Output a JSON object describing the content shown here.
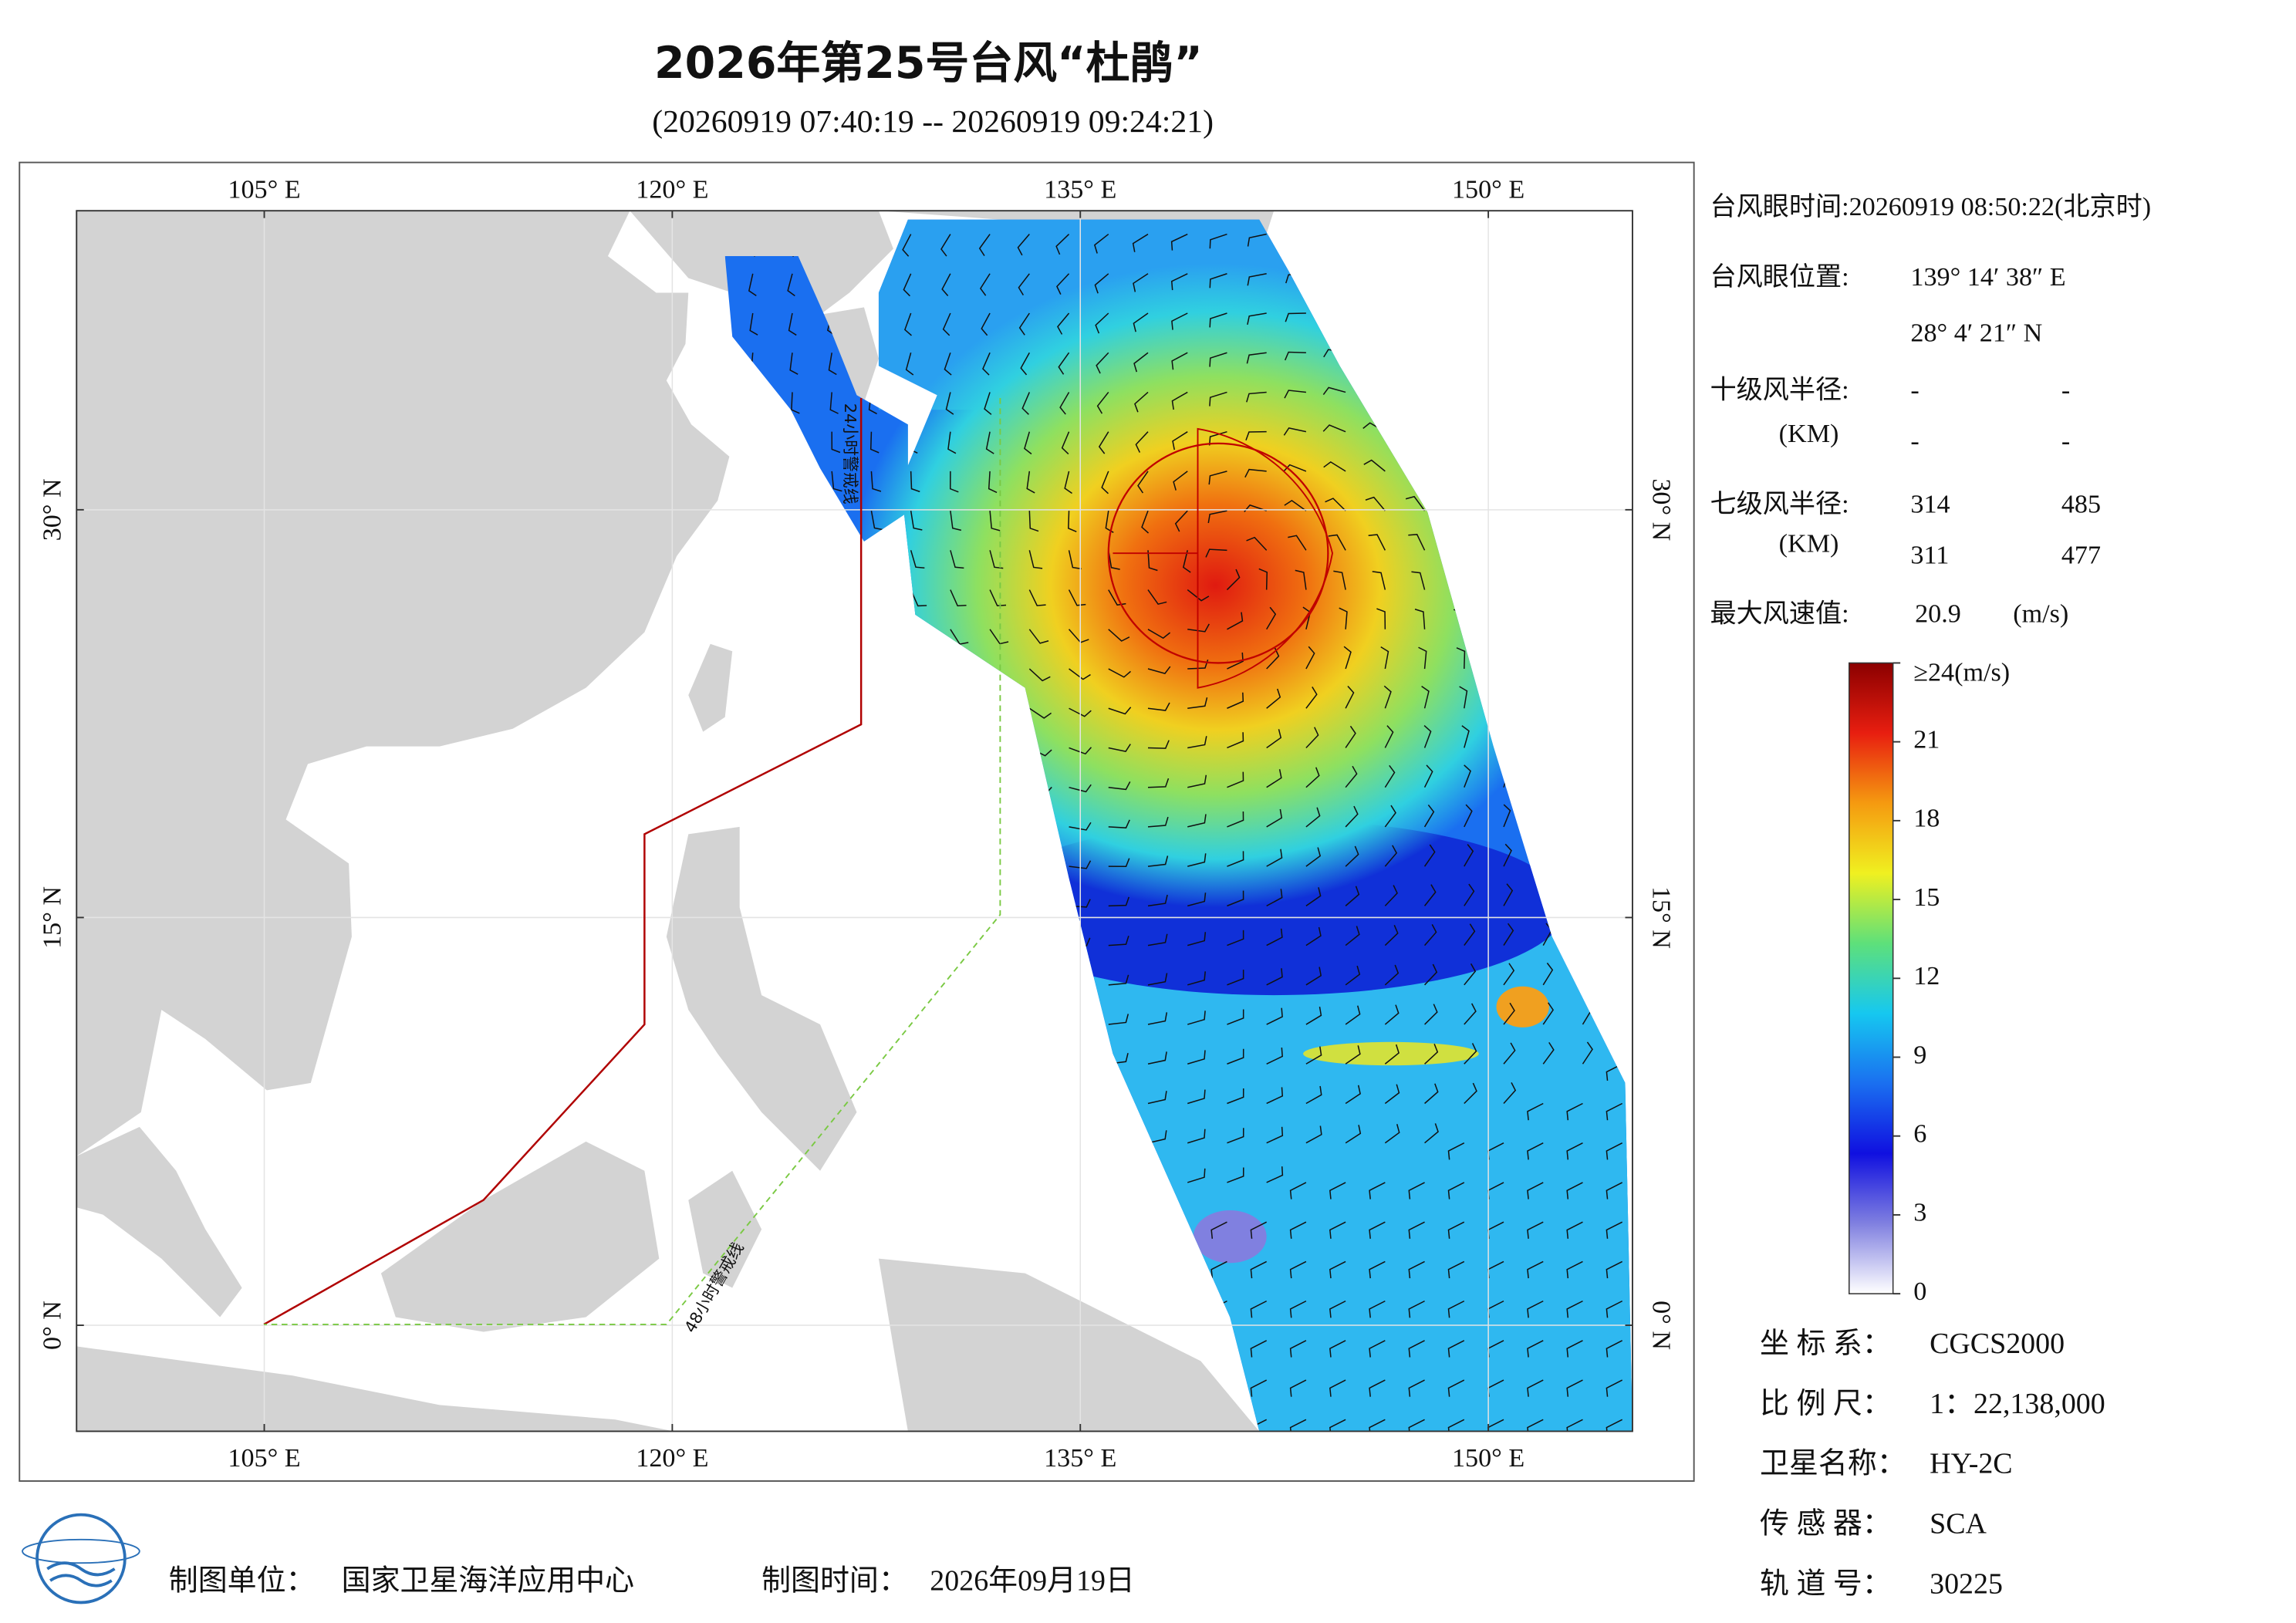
{
  "header": {
    "title": "2026年第25号台风“杜鹃”",
    "subtitle": "(20260919 07:40:19 -- 20260919 09:24:21)"
  },
  "map": {
    "xlim": [
      98.1,
      155.3
    ],
    "ylim": [
      -3.9,
      41.0
    ],
    "lon_ticks": [
      {
        "value": 105,
        "label": "105° E"
      },
      {
        "value": 120,
        "label": "120° E"
      },
      {
        "value": 135,
        "label": "135° E"
      },
      {
        "value": 150,
        "label": "150° E"
      }
    ],
    "lat_ticks": [
      {
        "value": 30,
        "label": "30° N"
      },
      {
        "value": 15,
        "label": "15° N"
      },
      {
        "value": 0,
        "label": "0° N"
      }
    ],
    "warning_24h": "24小时警戒线",
    "warning_48h": "48小时警戒线"
  },
  "info": {
    "eye_time": "台风眼时间:20260919 08:50:22(北京时)",
    "eye_position_label": "台风眼位置:",
    "eye_lon": "139° 14′ 38″ E",
    "eye_lat": "28° 4′ 21″ N",
    "r10_label": "十级风半径:",
    "r10_unit": "(KM)",
    "r10_values": [
      [
        "-",
        "-"
      ],
      [
        "-",
        "-"
      ]
    ],
    "r7_label": "七级风半径:",
    "r7_unit": "(KM)",
    "r7_values": [
      [
        314,
        485
      ],
      [
        311,
        477
      ]
    ],
    "max_label": "最大风速值:",
    "max_value": 20.9,
    "max_unit": "(m/s)",
    "meta": [
      {
        "label": "坐 标 系：",
        "value": "CGCS2000"
      },
      {
        "label": "比 例 尺：",
        "value": "1：22,138,000"
      },
      {
        "label": "卫星名称：",
        "value": "HY-2C"
      },
      {
        "label": "传 感 器：",
        "value": "SCA"
      },
      {
        "label": "轨 道 号：",
        "value": "30225"
      }
    ]
  },
  "colorbar": {
    "ylim": [
      0,
      24
    ],
    "ticks": [
      {
        "value": 24,
        "label": "≥24(m/s)"
      },
      21,
      18,
      15,
      12,
      9,
      6,
      3,
      0
    ],
    "colors": [
      "#ffffff",
      "#8080e0",
      "#1010e0",
      "#1a6ff0",
      "#16c8f0",
      "#5ee07a",
      "#f0f020",
      "#f59a10",
      "#e81e10",
      "#8b0000"
    ]
  },
  "footer": {
    "unit_label": "制图单位：",
    "unit": "国家卫星海洋应用中心",
    "time_label": "制图时间：",
    "time": "2026年09月19日"
  }
}
